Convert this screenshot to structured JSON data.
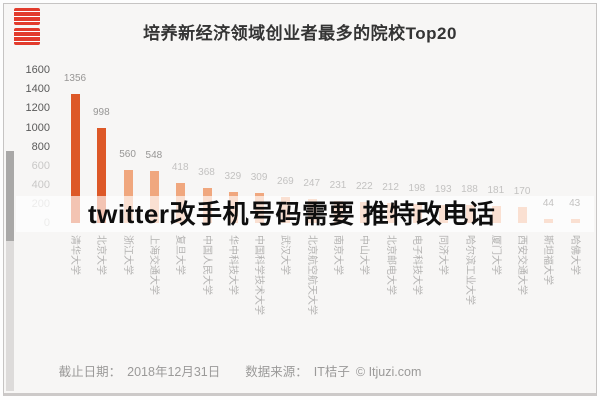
{
  "title": "培养新经济领域创业者最多的院校Top20",
  "overlay": {
    "text": "twitter改手机号码需要 推特改电话"
  },
  "footer": {
    "deadline_label": "截止日期：",
    "deadline_value": "2018年12月31日",
    "source_label": "数据来源：",
    "source_value": "IT桔子",
    "copyright": "© Itjuzi.com"
  },
  "logo": {
    "name": "red-stamp-logo"
  },
  "chart_data": {
    "type": "bar",
    "title": "培养新经济领域创业者最多的院校Top20",
    "categories": [
      "清华大学",
      "北京大学",
      "浙江大学",
      "上海交通大学",
      "复旦大学",
      "中国人民大学",
      "华中科技大学",
      "中国科学技术大学",
      "武汉大学",
      "北京航空航天大学",
      "南京大学",
      "中山大学",
      "北京邮电大学",
      "电子科技大学",
      "同济大学",
      "哈尔滨工业大学",
      "厦门大学",
      "西安交通大学",
      "斯坦福大学",
      "哈佛大学"
    ],
    "values": [
      1356,
      998,
      560,
      548,
      418,
      368,
      329,
      309,
      269,
      247,
      231,
      222,
      212,
      198,
      193,
      188,
      181,
      170,
      44,
      43
    ],
    "xlabel": "",
    "ylabel": "",
    "ylim": [
      0,
      1600
    ],
    "yticks": [
      1600,
      1400,
      1200,
      1000,
      800,
      600,
      400,
      200,
      0
    ],
    "grid": false,
    "legend_position": "none",
    "bar_label_visible": true,
    "colors": {
      "bar_primary": "#dd5827",
      "bar_secondary": "#f0a77e",
      "value_label_dark": "#979695",
      "value_label_light": "#c3c2c1",
      "ytick_dark": "#5a5a5a",
      "ytick_light": "#c9c8c7",
      "xtick": "#b3b2b1",
      "stamp_red": "#e23b2c"
    }
  }
}
